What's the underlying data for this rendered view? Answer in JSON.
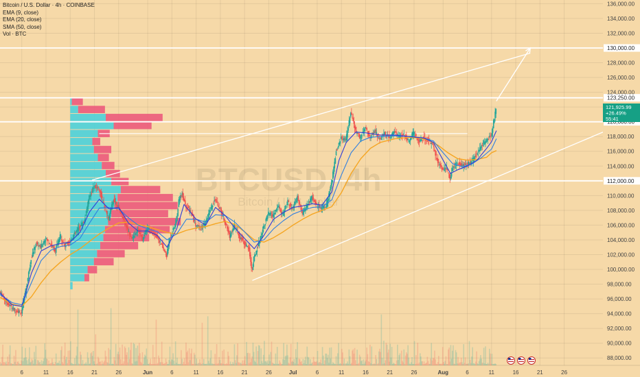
{
  "header": {
    "title": "Bitcoin / U.S. Dollar · 4h · COINBASE",
    "indicators": [
      "EMA (9, close)",
      "EMA (20, close)",
      "SMA (50, close)",
      "Vol · BTC"
    ]
  },
  "watermark": {
    "symbol": "BTCUSD, 4h",
    "name": "Bitcoin / U.S. Dollar"
  },
  "price_tag": {
    "price": "121,925.99",
    "change": "+26.49%",
    "countdown": "55:41"
  },
  "colors": {
    "background": "#f6d9a8",
    "up": "#26a69a",
    "down": "#ef5350",
    "ema9": "#2f3bd8",
    "ema20": "#2f7fe0",
    "sma50": "#f5a623",
    "vp_up": "#4fd1d9",
    "vp_down": "#ec5a7b",
    "levels": "#ffffff",
    "tag": "#16a085"
  },
  "chart_data": {
    "type": "line",
    "chart_style": "candlestick",
    "timeframe": "4h",
    "y_range": [
      87000,
      136500
    ],
    "y_ticks": [
      88000,
      90000,
      92000,
      94000,
      96000,
      98000,
      100000,
      102000,
      104000,
      106000,
      108000,
      110000,
      112000,
      114000,
      116000,
      118000,
      120000,
      122000,
      124000,
      126000,
      128000,
      130000,
      132000,
      134000,
      136000
    ],
    "y_tick_labels": [
      "88,000.00",
      "90,000.00",
      "92,000.00",
      "94,000.00",
      "96,000.00",
      "98,000.00",
      "100,000.00",
      "102,000.00",
      "104,000.00",
      "106,000.00",
      "108,000.00",
      "110,000.00",
      "112,000.00",
      "114,000.00",
      "116,000.00",
      "118,000.00",
      "120,000.00",
      "122,000.00",
      "124,000.00",
      "126,000.00",
      "128,000.00",
      "130,000.00",
      "132,000.00",
      "134,000.00",
      "136,000.00"
    ],
    "x_ticks": [
      {
        "label": "6",
        "day": 6
      },
      {
        "label": "11",
        "day": 11
      },
      {
        "label": "16",
        "day": 16
      },
      {
        "label": "21",
        "day": 21
      },
      {
        "label": "26",
        "day": 26
      },
      {
        "label": "Jun",
        "day": 32
      },
      {
        "label": "6",
        "day": 37
      },
      {
        "label": "11",
        "day": 42
      },
      {
        "label": "16",
        "day": 47
      },
      {
        "label": "21",
        "day": 52
      },
      {
        "label": "26",
        "day": 57
      },
      {
        "label": "Jul",
        "day": 62
      },
      {
        "label": "6",
        "day": 67
      },
      {
        "label": "11",
        "day": 72
      },
      {
        "label": "16",
        "day": 77
      },
      {
        "label": "21",
        "day": 82
      },
      {
        "label": "26",
        "day": 87
      },
      {
        "label": "Aug",
        "day": 93
      },
      {
        "label": "6",
        "day": 98
      },
      {
        "label": "11",
        "day": 103
      },
      {
        "label": "16",
        "day": 108
      },
      {
        "label": "21",
        "day": 113
      },
      {
        "label": "26",
        "day": 118
      }
    ],
    "x_range": [
      1.5,
      126
    ],
    "price_path": [
      [
        1.5,
        97000
      ],
      [
        3,
        95500
      ],
      [
        4.5,
        94500
      ],
      [
        6,
        94200
      ],
      [
        7,
        97500
      ],
      [
        8,
        101500
      ],
      [
        9,
        103500
      ],
      [
        10,
        103000
      ],
      [
        11,
        104200
      ],
      [
        12,
        103500
      ],
      [
        13,
        102500
      ],
      [
        14,
        104500
      ],
      [
        15,
        103200
      ],
      [
        16,
        103800
      ],
      [
        17,
        104800
      ],
      [
        18,
        105800
      ],
      [
        19,
        106500
      ],
      [
        20,
        109800
      ],
      [
        21,
        111200
      ],
      [
        22,
        111000
      ],
      [
        23,
        108800
      ],
      [
        24,
        106800
      ],
      [
        25,
        109500
      ],
      [
        26,
        108500
      ],
      [
        27,
        107000
      ],
      [
        28,
        105200
      ],
      [
        29,
        104200
      ],
      [
        30,
        105500
      ],
      [
        31,
        104000
      ],
      [
        32,
        105800
      ],
      [
        33,
        105000
      ],
      [
        34,
        104500
      ],
      [
        35,
        103200
      ],
      [
        36,
        101800
      ],
      [
        36.5,
        104000
      ],
      [
        37,
        104800
      ],
      [
        38,
        106500
      ],
      [
        38.6,
        109800
      ],
      [
        39.2,
        110200
      ],
      [
        40,
        108500
      ],
      [
        41,
        107800
      ],
      [
        42,
        106000
      ],
      [
        43,
        105500
      ],
      [
        44,
        106200
      ],
      [
        45,
        108200
      ],
      [
        46,
        109500
      ],
      [
        47,
        108200
      ],
      [
        48,
        106500
      ],
      [
        49,
        104500
      ],
      [
        50,
        106000
      ],
      [
        51,
        104500
      ],
      [
        52,
        103600
      ],
      [
        53,
        102700
      ],
      [
        53.6,
        99800
      ],
      [
        54,
        101500
      ],
      [
        55,
        103500
      ],
      [
        56,
        105800
      ],
      [
        57,
        107600
      ],
      [
        58,
        107200
      ],
      [
        59,
        108600
      ],
      [
        60,
        107400
      ],
      [
        61,
        109200
      ],
      [
        62,
        108200
      ],
      [
        63,
        109800
      ],
      [
        64,
        107500
      ],
      [
        65,
        108700
      ],
      [
        66,
        109800
      ],
      [
        67,
        108600
      ],
      [
        68,
        108400
      ],
      [
        69,
        108700
      ],
      [
        70,
        111500
      ],
      [
        71,
        116000
      ],
      [
        72,
        117800
      ],
      [
        73,
        117500
      ],
      [
        74,
        121200
      ],
      [
        75,
        118800
      ],
      [
        76,
        117800
      ],
      [
        77,
        119300
      ],
      [
        78,
        117900
      ],
      [
        79,
        118800
      ],
      [
        80,
        117600
      ],
      [
        81,
        118500
      ],
      [
        82,
        117800
      ],
      [
        83,
        118700
      ],
      [
        84,
        117900
      ],
      [
        85,
        118300
      ],
      [
        86,
        117400
      ],
      [
        87,
        118600
      ],
      [
        88,
        117300
      ],
      [
        89,
        117800
      ],
      [
        90,
        117500
      ],
      [
        91,
        116800
      ],
      [
        92,
        114500
      ],
      [
        93,
        113500
      ],
      [
        93.8,
        113800
      ],
      [
        94.5,
        112200
      ],
      [
        95,
        113800
      ],
      [
        96,
        114400
      ],
      [
        97,
        114100
      ],
      [
        98,
        114200
      ],
      [
        99,
        114600
      ],
      [
        100,
        115600
      ],
      [
        101,
        116800
      ],
      [
        102,
        117400
      ],
      [
        103,
        118100
      ],
      [
        104,
        121900
      ]
    ],
    "ema9_path": [
      [
        1.5,
        96800
      ],
      [
        4,
        95200
      ],
      [
        6,
        95000
      ],
      [
        8,
        99500
      ],
      [
        10,
        102500
      ],
      [
        12,
        103200
      ],
      [
        14,
        103500
      ],
      [
        16,
        103700
      ],
      [
        18,
        105000
      ],
      [
        20,
        107800
      ],
      [
        22,
        109500
      ],
      [
        24,
        108200
      ],
      [
        26,
        108400
      ],
      [
        28,
        106300
      ],
      [
        30,
        105200
      ],
      [
        32,
        105200
      ],
      [
        34,
        104600
      ],
      [
        36,
        103000
      ],
      [
        38,
        105500
      ],
      [
        39.5,
        108800
      ],
      [
        42,
        106800
      ],
      [
        44,
        106000
      ],
      [
        46,
        108400
      ],
      [
        48,
        107300
      ],
      [
        50,
        105600
      ],
      [
        52,
        104200
      ],
      [
        54,
        102800
      ],
      [
        56,
        104600
      ],
      [
        58,
        106800
      ],
      [
        60,
        107700
      ],
      [
        62,
        108400
      ],
      [
        64,
        108600
      ],
      [
        66,
        108900
      ],
      [
        68,
        108700
      ],
      [
        70,
        110500
      ],
      [
        71.5,
        114800
      ],
      [
        73,
        117200
      ],
      [
        75,
        118600
      ],
      [
        77,
        118500
      ],
      [
        80,
        118200
      ],
      [
        83,
        118200
      ],
      [
        86,
        118000
      ],
      [
        89,
        117800
      ],
      [
        91,
        117200
      ],
      [
        93,
        114800
      ],
      [
        94.5,
        113000
      ],
      [
        96,
        113500
      ],
      [
        98,
        114000
      ],
      [
        100,
        114800
      ],
      [
        102,
        116400
      ],
      [
        103,
        117300
      ],
      [
        104,
        118800
      ]
    ],
    "ema20_path": [
      [
        1.5,
        96600
      ],
      [
        4,
        95500
      ],
      [
        6,
        95200
      ],
      [
        8,
        98200
      ],
      [
        10,
        101200
      ],
      [
        12,
        102600
      ],
      [
        14,
        103100
      ],
      [
        16,
        103300
      ],
      [
        18,
        104200
      ],
      [
        20,
        106300
      ],
      [
        22,
        108300
      ],
      [
        24,
        108400
      ],
      [
        26,
        108200
      ],
      [
        28,
        107000
      ],
      [
        30,
        106000
      ],
      [
        32,
        105500
      ],
      [
        34,
        105100
      ],
      [
        36,
        104000
      ],
      [
        38,
        104800
      ],
      [
        40,
        106800
      ],
      [
        42,
        106800
      ],
      [
        44,
        106400
      ],
      [
        46,
        107400
      ],
      [
        48,
        107300
      ],
      [
        50,
        106400
      ],
      [
        52,
        105100
      ],
      [
        54,
        103700
      ],
      [
        56,
        104000
      ],
      [
        58,
        105500
      ],
      [
        60,
        106600
      ],
      [
        62,
        107500
      ],
      [
        64,
        108000
      ],
      [
        66,
        108400
      ],
      [
        68,
        108500
      ],
      [
        70,
        109400
      ],
      [
        72,
        112800
      ],
      [
        74,
        115800
      ],
      [
        76,
        117400
      ],
      [
        78,
        117900
      ],
      [
        80,
        118000
      ],
      [
        83,
        118100
      ],
      [
        86,
        118000
      ],
      [
        89,
        117800
      ],
      [
        91,
        117400
      ],
      [
        93,
        115800
      ],
      [
        95,
        114300
      ],
      [
        97,
        113900
      ],
      [
        99,
        114300
      ],
      [
        101,
        115200
      ],
      [
        103,
        116300
      ],
      [
        104,
        117700
      ]
    ],
    "sma50_path": [
      [
        1.5,
        96200
      ],
      [
        4,
        95300
      ],
      [
        6,
        95000
      ],
      [
        8,
        96300
      ],
      [
        10,
        98200
      ],
      [
        12,
        99800
      ],
      [
        14,
        101000
      ],
      [
        16,
        102000
      ],
      [
        18,
        102800
      ],
      [
        20,
        103800
      ],
      [
        22,
        104800
      ],
      [
        24,
        105600
      ],
      [
        26,
        106300
      ],
      [
        28,
        106400
      ],
      [
        30,
        106100
      ],
      [
        32,
        105800
      ],
      [
        34,
        105400
      ],
      [
        36,
        105000
      ],
      [
        38,
        104800
      ],
      [
        40,
        105300
      ],
      [
        42,
        105600
      ],
      [
        44,
        105800
      ],
      [
        46,
        106200
      ],
      [
        48,
        106500
      ],
      [
        50,
        106100
      ],
      [
        52,
        105100
      ],
      [
        54,
        104000
      ],
      [
        56,
        103700
      ],
      [
        58,
        104300
      ],
      [
        60,
        105100
      ],
      [
        62,
        106000
      ],
      [
        64,
        106800
      ],
      [
        66,
        107500
      ],
      [
        68,
        108000
      ],
      [
        70,
        108500
      ],
      [
        72,
        110400
      ],
      [
        74,
        113000
      ],
      [
        76,
        115000
      ],
      [
        78,
        116400
      ],
      [
        80,
        117200
      ],
      [
        83,
        117700
      ],
      [
        86,
        117900
      ],
      [
        88,
        117800
      ],
      [
        90,
        117500
      ],
      [
        92,
        116800
      ],
      [
        94,
        115800
      ],
      [
        96,
        115000
      ],
      [
        98,
        114800
      ],
      [
        100,
        114900
      ],
      [
        102,
        115200
      ],
      [
        103,
        115800
      ],
      [
        104,
        116100
      ]
    ],
    "horizontal_levels": [
      {
        "value": 130000,
        "label": "130,000.00"
      },
      {
        "value": 123250,
        "label": "123,250.00"
      },
      {
        "value": 120000,
        "label": "120,000.00"
      },
      {
        "value": 112000,
        "label": "112,000.00"
      }
    ],
    "short_level": {
      "value": 118400,
      "from_day": 22,
      "to_day": 98
    },
    "channel_upper": {
      "from": [
        20.5,
        112100
      ],
      "to": [
        111,
        129300
      ]
    },
    "channel_lower": {
      "from": [
        53.6,
        98500
      ],
      "to": [
        126,
        118600
      ]
    },
    "projection_arrow": {
      "from": [
        104,
        122800
      ],
      "to": [
        111,
        130000
      ]
    },
    "volume_profile": {
      "price_bottom": 97200,
      "price_top": 123250,
      "rows": 24,
      "up": [
        3,
        18,
        22,
        30,
        34,
        38,
        42,
        44,
        48,
        52,
        56,
        60,
        64,
        52,
        45,
        40,
        35,
        30,
        28,
        35,
        55,
        45,
        10,
        2
      ],
      "down": [
        0,
        6,
        12,
        25,
        35,
        48,
        58,
        82,
        92,
        72,
        80,
        70,
        50,
        22,
        18,
        16,
        14,
        22,
        10,
        15,
        48,
        72,
        34,
        14
      ]
    },
    "volume_bars": {
      "baseline": 87000,
      "max_height_price": 8000
    }
  },
  "event_icons": [
    "flag-icon-us",
    "flag-icon-us",
    "flag-icon-us"
  ]
}
